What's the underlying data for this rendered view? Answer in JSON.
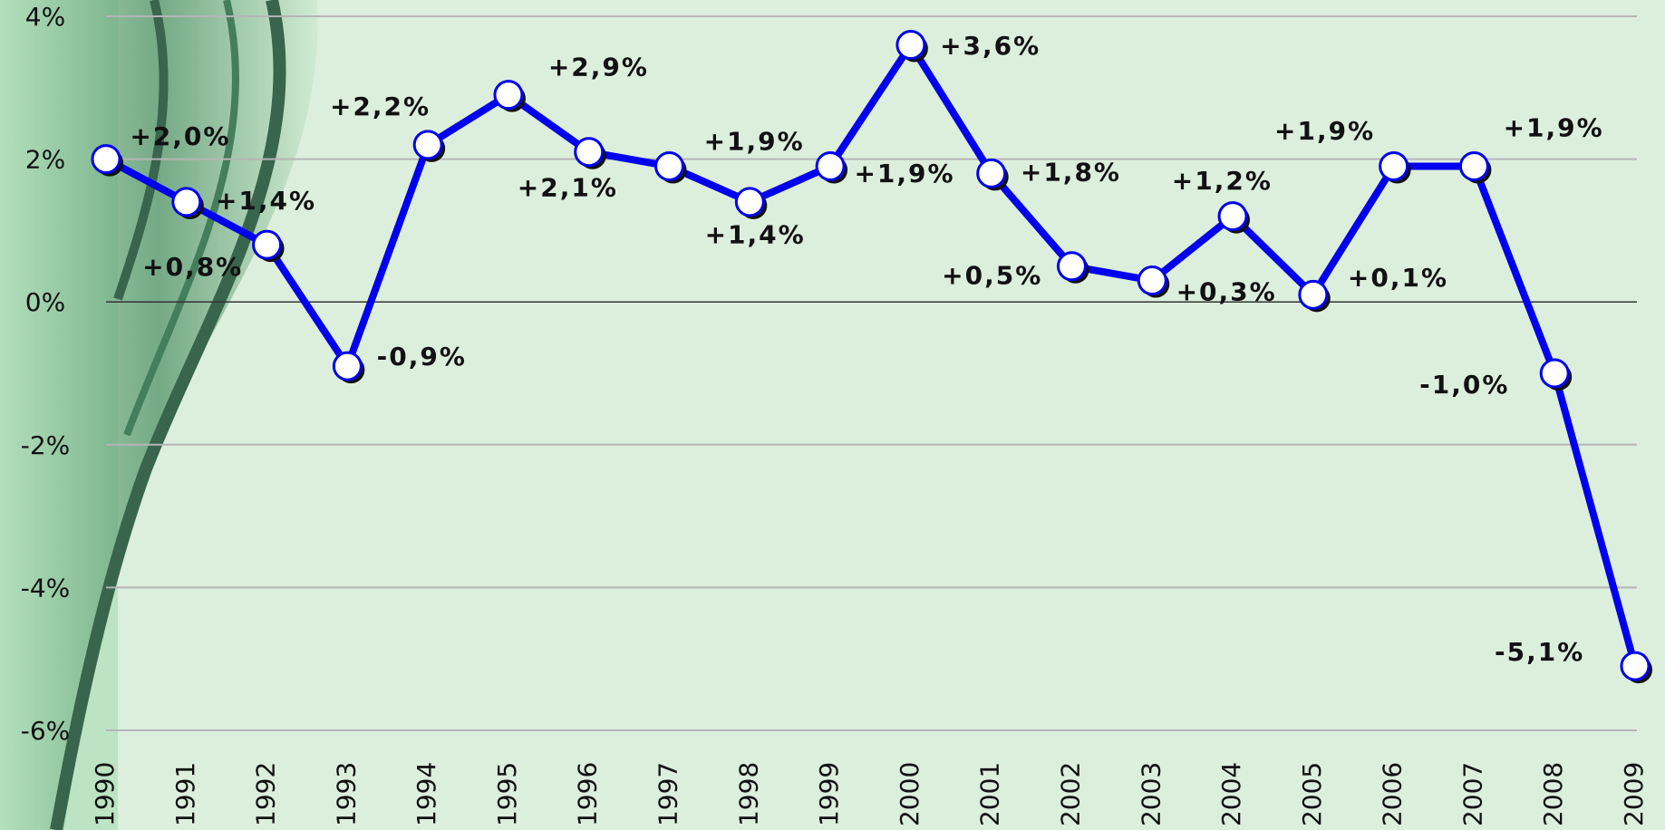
{
  "chart_data": {
    "type": "line",
    "categories": [
      "1990",
      "1991",
      "1992",
      "1993",
      "1994",
      "1995",
      "1996",
      "1997",
      "1998",
      "1999",
      "2000",
      "2001",
      "2002",
      "2003",
      "2004",
      "2005",
      "2006",
      "2007",
      "2008",
      "2009"
    ],
    "series": [
      {
        "color": "#0000ee",
        "values": [
          2.0,
          1.4,
          0.8,
          -0.9,
          2.2,
          2.9,
          2.1,
          1.9,
          1.4,
          1.9,
          3.6,
          1.8,
          0.5,
          0.3,
          1.2,
          0.1,
          1.9,
          1.9,
          -1.0,
          -5.1
        ],
        "value_labels": [
          "+2,0%",
          "+1,4%",
          "+0,8%",
          "-0,9%",
          "+2,2%",
          "+2,9%",
          "+2,1%",
          "+1,9%",
          "+1,4%",
          "+1,9%",
          "+3,6%",
          "+1,8%",
          "+0,5%",
          "+0,3%",
          "+1,2%",
          "+0,1%",
          "+1,9%",
          "+1,9%",
          "-1,0%",
          "-5,1%"
        ]
      }
    ],
    "ylim": [
      -6,
      4
    ],
    "yticks": [
      {
        "value": 4,
        "label": "4%"
      },
      {
        "value": 2,
        "label": "2%"
      },
      {
        "value": 0,
        "label": "0%"
      },
      {
        "value": -2,
        "label": "-2%"
      },
      {
        "value": -4,
        "label": "-4%"
      },
      {
        "value": -6,
        "label": "-6%"
      }
    ],
    "grid": true
  }
}
